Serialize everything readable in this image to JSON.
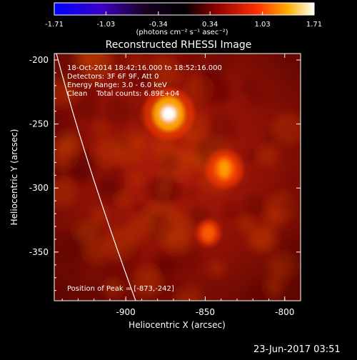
{
  "chart_data": {
    "type": "heatmap",
    "title": "Reconstructed RHESSI Image",
    "xlabel": "Heliocentric X (arcsec)",
    "ylabel": "Heliocentric Y (arcsec)",
    "xlim": [
      -945,
      -790
    ],
    "ylim": [
      -388,
      -195
    ],
    "xticks": [
      "-900",
      "-850",
      "-800"
    ],
    "yticks": [
      "-200",
      "-250",
      "-300",
      "-350"
    ],
    "colorbar": {
      "min": -1.71,
      "max": 1.71,
      "ticks": [
        "-1.71",
        "-1.03",
        "-0.34",
        "0.34",
        "1.03",
        "1.71"
      ],
      "units": "(photons cm⁻² s⁻¹ asec⁻²)"
    },
    "sources": [
      {
        "x": -873,
        "y": -242,
        "peak": 1.71
      },
      {
        "x": -838,
        "y": -285,
        "peak": 1.1
      },
      {
        "x": -848,
        "y": -335,
        "peak": 0.55
      }
    ],
    "annotations": {
      "line1": "18-Oct-2014 18:42:16.000 to 18:52:16.000",
      "line2": "Detectors: 3F 6F 9F, Att 0",
      "line3": "Energy Range: 3.0 - 6.0 keV",
      "line4": "Clean    Total counts: 6.89E+04",
      "peak": "Position of Peak = [-873,-242]"
    }
  },
  "footer": {
    "date": "23-Jun-2017 03:51"
  }
}
